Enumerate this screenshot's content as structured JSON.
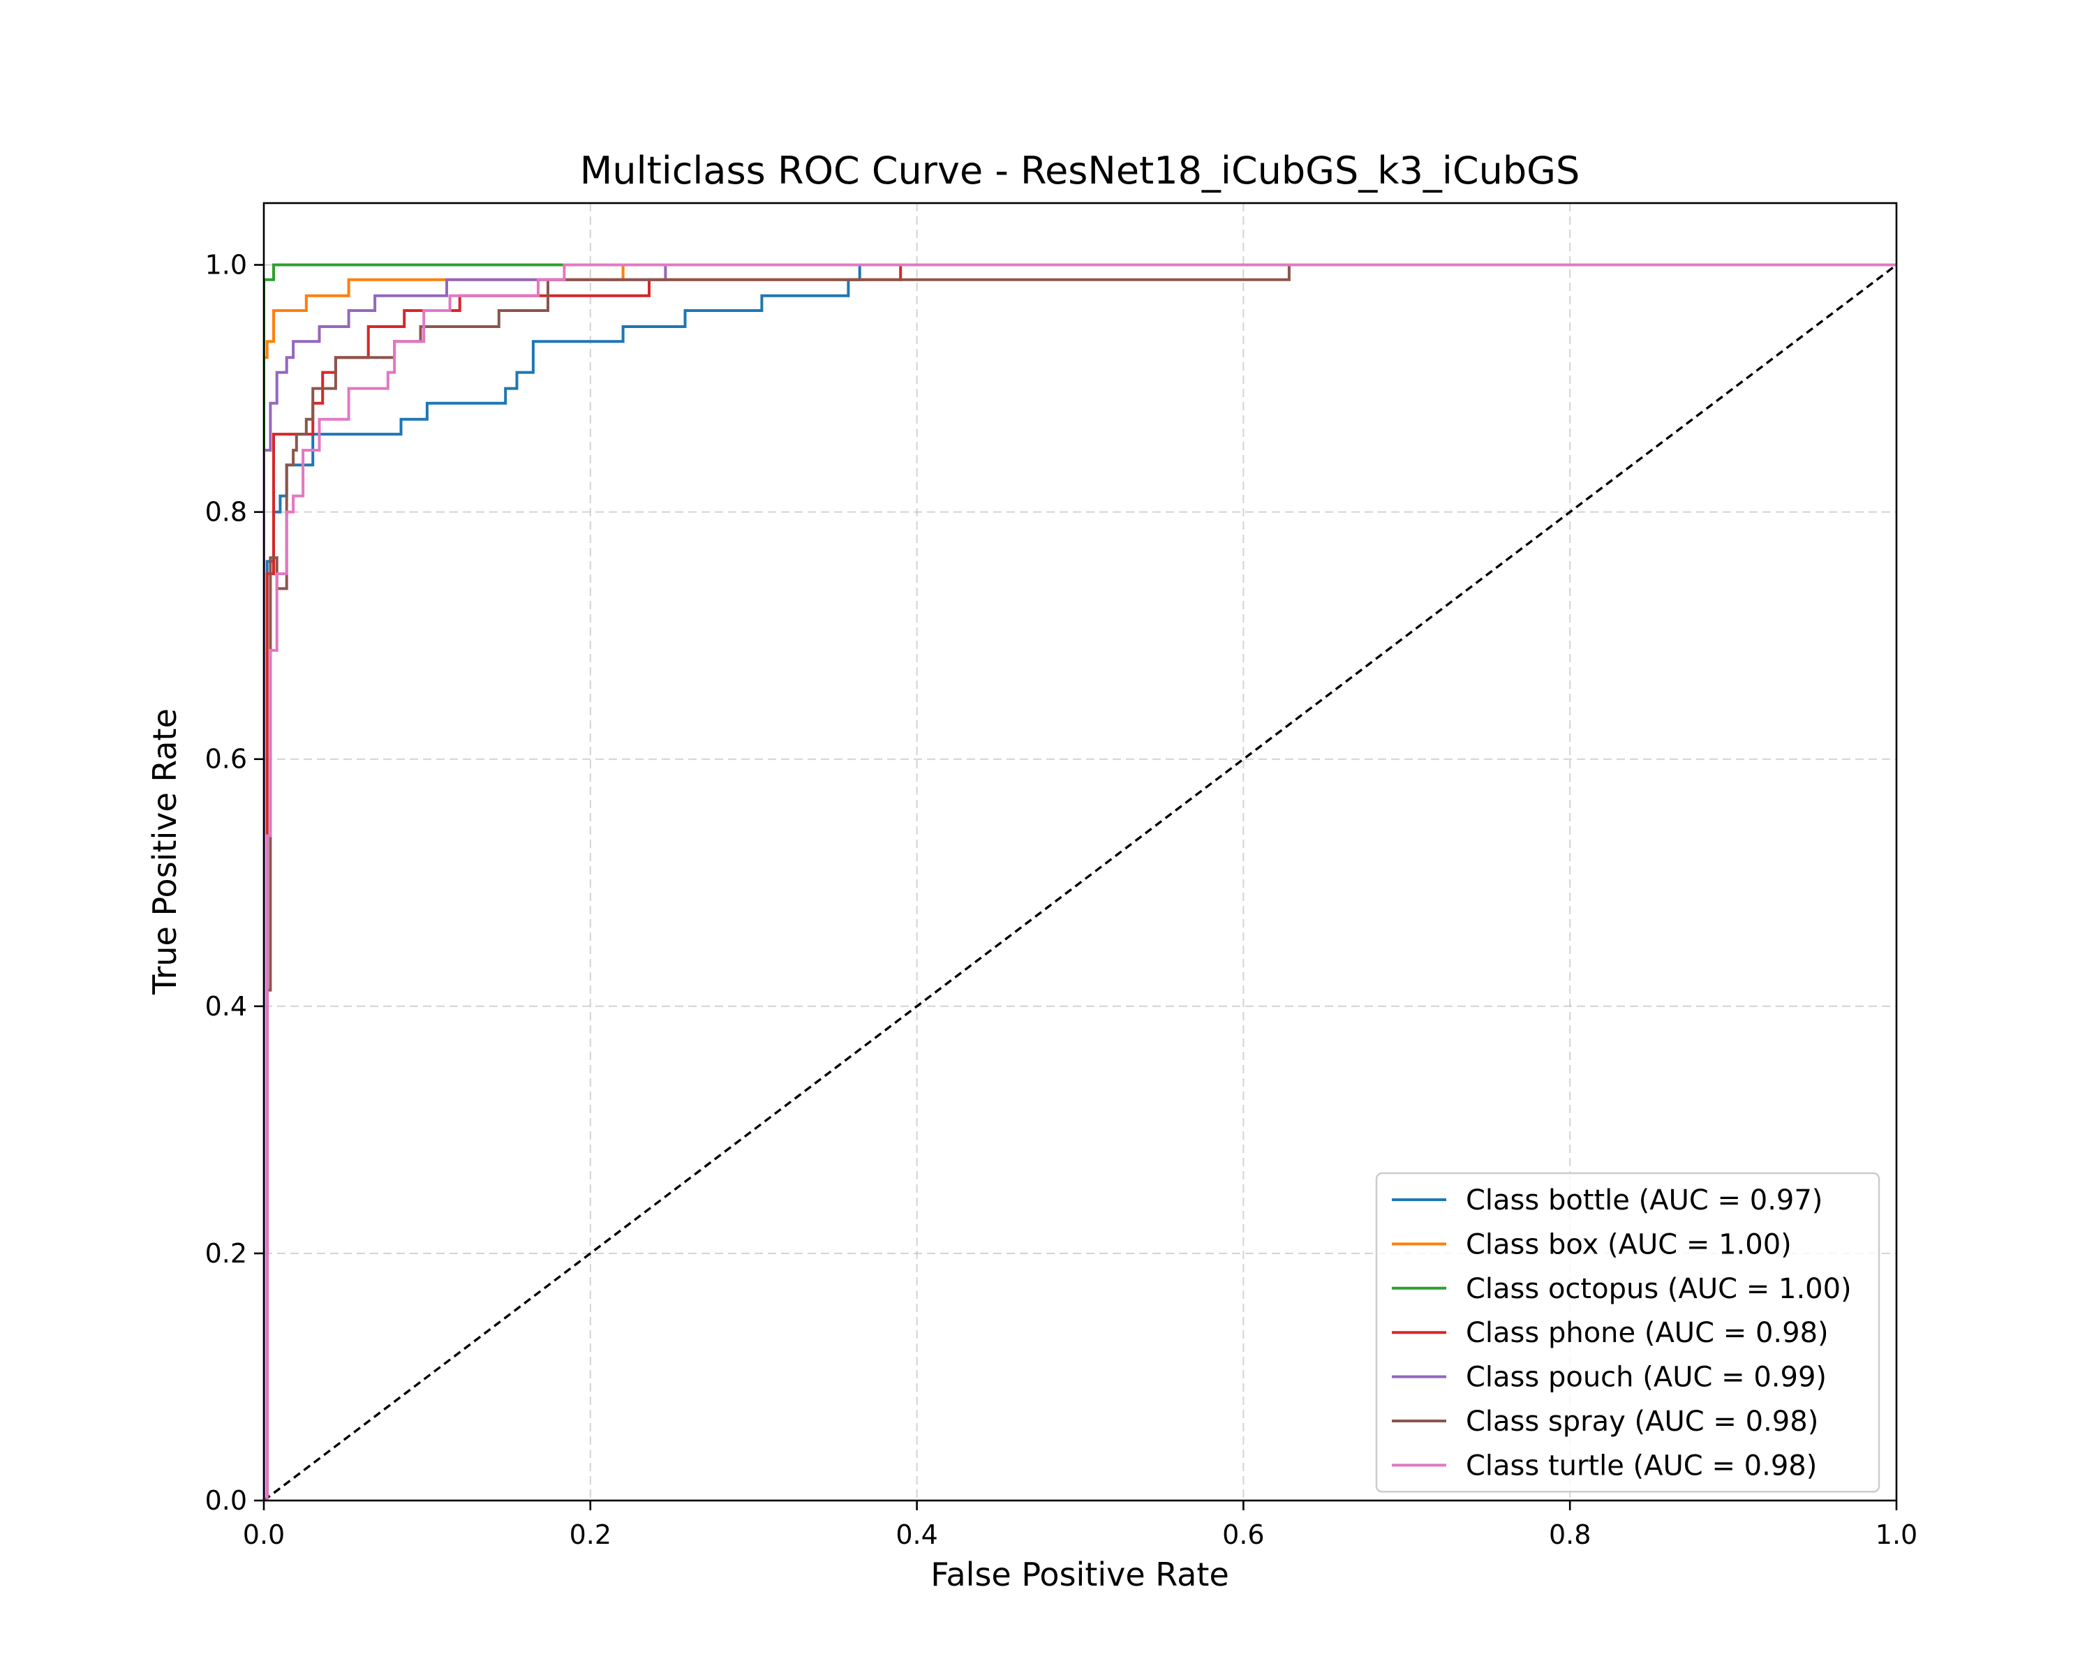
{
  "chart_data": {
    "type": "line",
    "title": "Multiclass ROC Curve - ResNet18_iCubGS_k3_iCubGS",
    "xlabel": "False Positive Rate",
    "ylabel": "True Positive Rate",
    "xlim": [
      0.0,
      1.0
    ],
    "ylim": [
      0.0,
      1.05
    ],
    "xticks": [
      "0.0",
      "0.2",
      "0.4",
      "0.6",
      "0.8",
      "1.0"
    ],
    "yticks": [
      "0.0",
      "0.2",
      "0.4",
      "0.6",
      "0.8",
      "1.0"
    ],
    "xtick_values": [
      0.0,
      0.2,
      0.4,
      0.6,
      0.8,
      1.0
    ],
    "ytick_values": [
      0.0,
      0.2,
      0.4,
      0.6,
      0.8,
      1.0
    ],
    "grid": true,
    "legend_position": "lower-right",
    "reference_line": {
      "x": [
        0,
        1
      ],
      "y": [
        0,
        1
      ],
      "style": "dashed",
      "color": "#000000"
    },
    "series": [
      {
        "name": "Class bottle (AUC = 0.97)",
        "color": "#1f77b4",
        "x": [
          0,
          0.002,
          0.002,
          0.006,
          0.006,
          0.01,
          0.01,
          0.014,
          0.014,
          0.03,
          0.03,
          0.084,
          0.084,
          0.1,
          0.1,
          0.148,
          0.148,
          0.155,
          0.155,
          0.165,
          0.165,
          0.22,
          0.22,
          0.258,
          0.258,
          0.305,
          0.305,
          0.358,
          0.358,
          0.365,
          0.365,
          1.0
        ],
        "y": [
          0,
          0,
          0.76,
          0.76,
          0.8,
          0.8,
          0.813,
          0.813,
          0.838,
          0.838,
          0.863,
          0.863,
          0.875,
          0.875,
          0.888,
          0.888,
          0.9,
          0.9,
          0.913,
          0.913,
          0.938,
          0.938,
          0.95,
          0.95,
          0.963,
          0.963,
          0.975,
          0.975,
          0.988,
          0.988,
          1.0,
          1.0
        ]
      },
      {
        "name": "Class box (AUC = 1.00)",
        "color": "#ff7f0e",
        "x": [
          0,
          0.0,
          0.002,
          0.002,
          0.006,
          0.006,
          0.026,
          0.026,
          0.052,
          0.052,
          0.22,
          0.22,
          1.0
        ],
        "y": [
          0,
          0.925,
          0.925,
          0.938,
          0.938,
          0.963,
          0.963,
          0.975,
          0.975,
          0.988,
          0.988,
          1.0,
          1.0
        ]
      },
      {
        "name": "Class octopus (AUC = 1.00)",
        "color": "#2ca02c",
        "x": [
          0,
          0.0,
          0.006,
          0.006,
          1.0
        ],
        "y": [
          0,
          0.988,
          0.988,
          1.0,
          1.0
        ]
      },
      {
        "name": "Class phone (AUC = 0.98)",
        "color": "#d62728",
        "x": [
          0,
          0.002,
          0.002,
          0.006,
          0.006,
          0.03,
          0.03,
          0.036,
          0.036,
          0.044,
          0.044,
          0.064,
          0.064,
          0.086,
          0.086,
          0.108,
          0.108,
          0.12,
          0.12,
          0.14,
          0.14,
          0.236,
          0.236,
          0.39,
          0.39,
          1.0
        ],
        "y": [
          0,
          0,
          0.75,
          0.75,
          0.863,
          0.863,
          0.888,
          0.888,
          0.913,
          0.913,
          0.925,
          0.925,
          0.95,
          0.95,
          0.963,
          0.963,
          0.963,
          0.963,
          0.975,
          0.975,
          0.975,
          0.975,
          0.988,
          0.988,
          1.0,
          1.0
        ]
      },
      {
        "name": "Class pouch (AUC = 0.99)",
        "color": "#9467bd",
        "x": [
          0,
          0.0,
          0.004,
          0.004,
          0.008,
          0.008,
          0.014,
          0.014,
          0.018,
          0.018,
          0.034,
          0.034,
          0.052,
          0.052,
          0.068,
          0.068,
          0.092,
          0.092,
          0.112,
          0.112,
          0.246,
          0.246,
          1.0
        ],
        "y": [
          0,
          0.85,
          0.85,
          0.888,
          0.888,
          0.913,
          0.913,
          0.925,
          0.925,
          0.938,
          0.938,
          0.95,
          0.95,
          0.963,
          0.963,
          0.975,
          0.975,
          0.975,
          0.975,
          0.988,
          0.988,
          1.0,
          1.0
        ]
      },
      {
        "name": "Class spray (AUC = 0.98)",
        "color": "#8c564b",
        "x": [
          0,
          0.002,
          0.002,
          0.004,
          0.004,
          0.008,
          0.008,
          0.014,
          0.014,
          0.018,
          0.018,
          0.02,
          0.02,
          0.026,
          0.026,
          0.03,
          0.03,
          0.044,
          0.044,
          0.08,
          0.08,
          0.096,
          0.096,
          0.144,
          0.144,
          0.174,
          0.174,
          0.628,
          0.628,
          1.0
        ],
        "y": [
          0,
          0,
          0.413,
          0.413,
          0.763,
          0.763,
          0.738,
          0.738,
          0.838,
          0.838,
          0.85,
          0.85,
          0.863,
          0.863,
          0.875,
          0.875,
          0.9,
          0.9,
          0.925,
          0.925,
          0.938,
          0.938,
          0.95,
          0.95,
          0.963,
          0.963,
          0.988,
          0.988,
          1.0,
          1.0
        ]
      },
      {
        "name": "Class turtle (AUC = 0.98)",
        "color": "#e377c2",
        "x": [
          0,
          0.002,
          0.002,
          0.004,
          0.004,
          0.008,
          0.008,
          0.014,
          0.014,
          0.018,
          0.018,
          0.024,
          0.024,
          0.034,
          0.034,
          0.052,
          0.052,
          0.072,
          0.072,
          0.076,
          0.076,
          0.08,
          0.08,
          0.098,
          0.098,
          0.114,
          0.114,
          0.168,
          0.168,
          0.184,
          0.184,
          1.0
        ],
        "y": [
          0,
          0,
          0.538,
          0.538,
          0.688,
          0.688,
          0.75,
          0.75,
          0.8,
          0.8,
          0.813,
          0.813,
          0.85,
          0.85,
          0.875,
          0.875,
          0.9,
          0.9,
          0.9,
          0.9,
          0.913,
          0.913,
          0.938,
          0.938,
          0.963,
          0.963,
          0.975,
          0.975,
          0.988,
          0.988,
          1.0,
          1.0
        ]
      }
    ]
  }
}
